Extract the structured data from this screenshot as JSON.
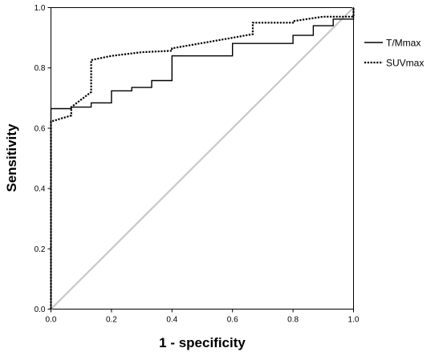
{
  "chart_data": {
    "type": "line",
    "title": "",
    "xlabel": "1 - specificity",
    "ylabel": "Sensitivity",
    "xlim": [
      0,
      1
    ],
    "ylim": [
      0,
      1
    ],
    "x_ticks": [
      "0.0",
      "0.2",
      "0.4",
      "0.6",
      "0.8",
      "1.0"
    ],
    "y_ticks": [
      "0.0",
      "0.2",
      "0.4",
      "0.6",
      "0.8",
      "1.0"
    ],
    "grid": false,
    "legend_position": "right",
    "series": [
      {
        "name": "T/Mmax",
        "style": "solid",
        "color": "#000000",
        "points": [
          [
            0,
            0
          ],
          [
            0,
            0.665
          ],
          [
            0.067,
            0.665
          ],
          [
            0.067,
            0.67
          ],
          [
            0.133,
            0.67
          ],
          [
            0.133,
            0.684
          ],
          [
            0.2,
            0.684
          ],
          [
            0.2,
            0.724
          ],
          [
            0.233,
            0.724
          ],
          [
            0.233,
            0.724
          ],
          [
            0.267,
            0.724
          ],
          [
            0.267,
            0.735
          ],
          [
            0.333,
            0.735
          ],
          [
            0.333,
            0.758
          ],
          [
            0.4,
            0.758
          ],
          [
            0.4,
            0.84
          ],
          [
            0.6,
            0.84
          ],
          [
            0.6,
            0.881
          ],
          [
            0.8,
            0.881
          ],
          [
            0.8,
            0.908
          ],
          [
            0.867,
            0.908
          ],
          [
            0.867,
            0.94
          ],
          [
            0.933,
            0.94
          ],
          [
            0.933,
            0.962
          ],
          [
            1,
            0.962
          ],
          [
            1,
            1
          ]
        ]
      },
      {
        "name": "SUVmax",
        "style": "dotted",
        "color": "#000000",
        "points": [
          [
            0,
            0
          ],
          [
            0,
            0.622
          ],
          [
            0.033,
            0.632
          ],
          [
            0.067,
            0.642
          ],
          [
            0.067,
            0.67
          ],
          [
            0.133,
            0.72
          ],
          [
            0.133,
            0.826
          ],
          [
            0.2,
            0.84
          ],
          [
            0.3,
            0.852
          ],
          [
            0.4,
            0.857
          ],
          [
            0.4,
            0.865
          ],
          [
            0.6,
            0.9
          ],
          [
            0.667,
            0.912
          ],
          [
            0.667,
            0.95
          ],
          [
            0.8,
            0.95
          ],
          [
            0.8,
            0.955
          ],
          [
            0.9,
            0.97
          ],
          [
            1,
            0.97
          ],
          [
            1,
            1
          ]
        ]
      },
      {
        "name": "",
        "style": "reference",
        "color": "#c8c8c8",
        "points": [
          [
            0,
            0
          ],
          [
            1,
            1
          ]
        ]
      }
    ]
  }
}
